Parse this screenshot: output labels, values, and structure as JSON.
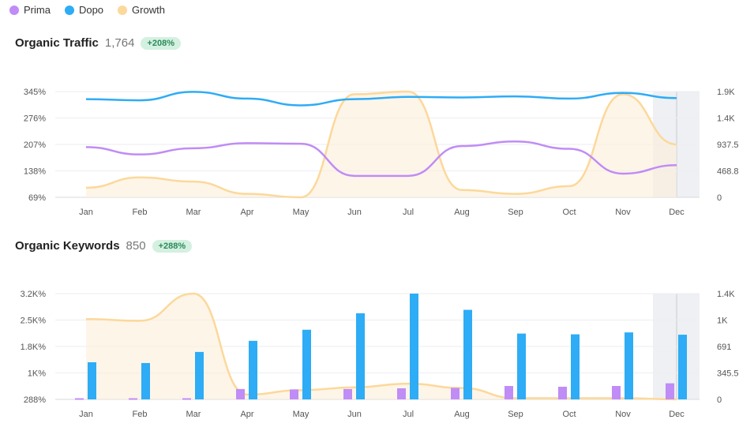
{
  "legend": [
    {
      "name": "Prima",
      "color": "#c08cf5"
    },
    {
      "name": "Dopo",
      "color": "#2eacf5"
    },
    {
      "name": "Growth",
      "color": "#fcd89a"
    }
  ],
  "charts": {
    "traffic": {
      "title": "Organic Traffic",
      "value": "1,764",
      "badge": "+208%"
    },
    "keywords": {
      "title": "Organic Keywords",
      "value": "850",
      "badge": "+288%"
    }
  },
  "chart_data": [
    {
      "type": "line",
      "title": "Organic Traffic",
      "categories": [
        "Jan",
        "Feb",
        "Mar",
        "Apr",
        "May",
        "Jun",
        "Jul",
        "Aug",
        "Sep",
        "Oct",
        "Nov",
        "Dec"
      ],
      "left_ticks": [
        "345%",
        "276%",
        "207%",
        "138%",
        "69%"
      ],
      "right_ticks": [
        "1.9K",
        "1.4K",
        "937.5",
        "468.8",
        "0"
      ],
      "left_ylim": [
        69,
        345
      ],
      "right_ylim": [
        0,
        1875
      ],
      "series": [
        {
          "name": "Prima",
          "axis": "right",
          "color": "#c08cf5",
          "values": [
            890,
            760,
            870,
            960,
            950,
            380,
            380,
            910,
            990,
            860,
            420,
            570
          ]
        },
        {
          "name": "Dopo",
          "axis": "right",
          "color": "#2eacf5",
          "values": [
            1740,
            1720,
            1870,
            1750,
            1630,
            1740,
            1780,
            1770,
            1790,
            1750,
            1850,
            1760
          ]
        },
        {
          "name": "Growth",
          "axis": "left",
          "color": "#fcd89a",
          "values": [
            94,
            121,
            110,
            78,
            69,
            338,
            345,
            88,
            78,
            98,
            338,
            207
          ]
        }
      ],
      "grid": true
    },
    {
      "type": "bar",
      "title": "Organic Keywords",
      "categories": [
        "Jan",
        "Feb",
        "Mar",
        "Apr",
        "May",
        "Jun",
        "Jul",
        "Aug",
        "Sep",
        "Oct",
        "Nov",
        "Dec"
      ],
      "left_ticks": [
        "3.2K%",
        "2.5K%",
        "1.8K%",
        "1K%",
        "288%"
      ],
      "right_ticks": [
        "1.4K",
        "1K",
        "691",
        "345.5",
        "0"
      ],
      "left_ylim": [
        288,
        3200
      ],
      "right_ylim": [
        0,
        1382
      ],
      "series": [
        {
          "name": "Prima",
          "axis": "right",
          "color": "#c08cf5",
          "values": [
            15,
            15,
            15,
            135,
            130,
            135,
            145,
            150,
            175,
            165,
            175,
            210
          ]
        },
        {
          "name": "Dopo",
          "axis": "right",
          "color": "#2eacf5",
          "values": [
            485,
            475,
            620,
            765,
            910,
            1125,
            1382,
            1170,
            860,
            850,
            875,
            845
          ]
        },
        {
          "name": "Growth",
          "axis": "left",
          "color": "#fcd89a",
          "values": [
            2500,
            2450,
            3200,
            420,
            540,
            620,
            720,
            600,
            320,
            320,
            320,
            288
          ]
        }
      ],
      "grid": true
    }
  ]
}
